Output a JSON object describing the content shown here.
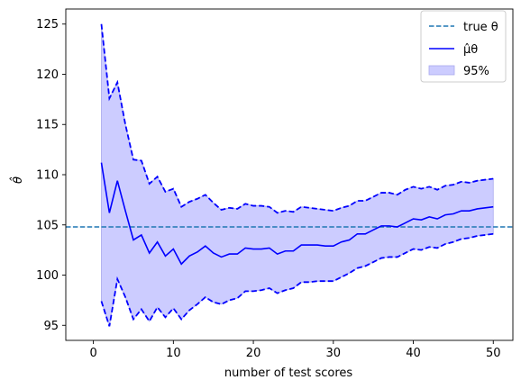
{
  "chart_data": {
    "type": "line",
    "title": "",
    "xlabel": "number of test scores",
    "ylabel": "θ̂",
    "xlim": [
      -3.45,
      52.45
    ],
    "ylim": [
      93.5,
      126.5
    ],
    "xticks": [
      0,
      10,
      20,
      30,
      40,
      50
    ],
    "yticks": [
      95,
      100,
      105,
      110,
      115,
      120,
      125
    ],
    "legend_position": "top-right",
    "true_theta": 104.8,
    "x": [
      1,
      2,
      3,
      4,
      5,
      6,
      7,
      8,
      9,
      10,
      11,
      12,
      13,
      14,
      15,
      16,
      17,
      18,
      19,
      20,
      21,
      22,
      23,
      24,
      25,
      26,
      27,
      28,
      29,
      30,
      31,
      32,
      33,
      34,
      35,
      36,
      37,
      38,
      39,
      40,
      41,
      42,
      43,
      44,
      45,
      46,
      47,
      48,
      49,
      50
    ],
    "series": [
      {
        "name": "μ̂_θ",
        "role": "estimate",
        "color": "#0000ff",
        "values": [
          111.2,
          106.2,
          109.4,
          106.4,
          103.5,
          104.0,
          102.2,
          103.3,
          101.9,
          102.6,
          101.1,
          101.9,
          102.3,
          102.9,
          102.2,
          101.8,
          102.1,
          102.1,
          102.7,
          102.6,
          102.6,
          102.7,
          102.1,
          102.4,
          102.4,
          103.0,
          103.0,
          103.0,
          102.9,
          102.9,
          103.3,
          103.5,
          104.1,
          104.1,
          104.5,
          104.9,
          104.9,
          104.8,
          105.2,
          105.6,
          105.5,
          105.8,
          105.6,
          106.0,
          106.1,
          106.4,
          106.4,
          106.6,
          106.7,
          106.8
        ]
      },
      {
        "name": "upper",
        "role": "ci-upper",
        "color": "#0000ff",
        "values": [
          125.0,
          117.6,
          119.2,
          115.0,
          111.5,
          111.4,
          109.1,
          109.8,
          108.3,
          108.6,
          106.8,
          107.3,
          107.6,
          108.0,
          107.2,
          106.5,
          106.7,
          106.6,
          107.1,
          106.9,
          106.9,
          106.8,
          106.2,
          106.4,
          106.3,
          106.8,
          106.7,
          106.6,
          106.5,
          106.4,
          106.7,
          106.9,
          107.4,
          107.4,
          107.8,
          108.2,
          108.2,
          108.0,
          108.5,
          108.8,
          108.6,
          108.8,
          108.5,
          108.9,
          109.0,
          109.3,
          109.2,
          109.4,
          109.5,
          109.6
        ]
      },
      {
        "name": "lower",
        "role": "ci-lower",
        "color": "#0000ff",
        "values": [
          97.4,
          94.9,
          99.6,
          97.8,
          95.6,
          96.6,
          95.4,
          96.8,
          95.8,
          96.7,
          95.6,
          96.5,
          97.1,
          97.8,
          97.3,
          97.1,
          97.5,
          97.7,
          98.4,
          98.4,
          98.5,
          98.7,
          98.2,
          98.5,
          98.7,
          99.3,
          99.3,
          99.4,
          99.4,
          99.4,
          99.8,
          100.2,
          100.7,
          100.9,
          101.3,
          101.7,
          101.8,
          101.8,
          102.2,
          102.6,
          102.5,
          102.8,
          102.7,
          103.1,
          103.3,
          103.6,
          103.7,
          103.9,
          104.0,
          104.1
        ]
      }
    ],
    "legend": [
      {
        "label": "true θ",
        "style": "dashed",
        "color": "#1f77b4"
      },
      {
        "label": "μ̂θ",
        "style": "solid",
        "color": "#0000ff"
      },
      {
        "label": "95%",
        "style": "fill",
        "color": "#ccccff"
      }
    ]
  }
}
